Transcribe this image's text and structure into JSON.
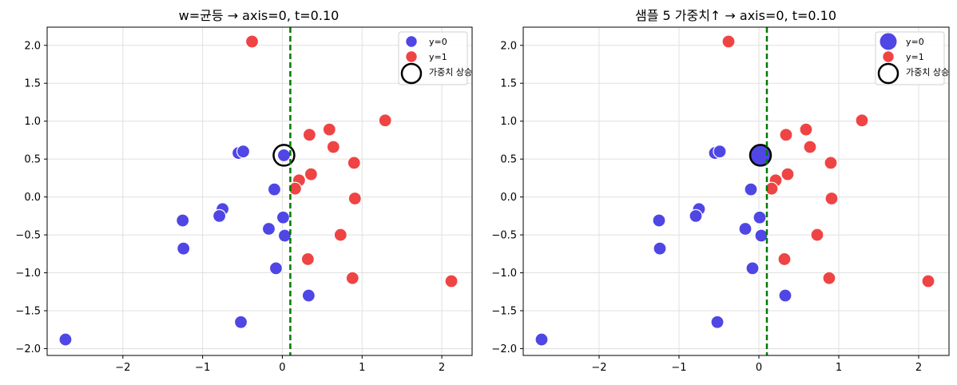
{
  "chart_data": [
    {
      "type": "scatter",
      "title": "w=균등  →  axis=0, t=0.10",
      "xlabel": "",
      "ylabel": "",
      "xlim": [
        -2.95,
        2.38
      ],
      "ylim": [
        -2.09,
        2.24
      ],
      "xticks": [
        -2,
        -1,
        0,
        1,
        2
      ],
      "yticks": [
        -2.0,
        -1.5,
        -1.0,
        -0.5,
        0.0,
        0.5,
        1.0,
        1.5,
        2.0
      ],
      "xtick_labels": [
        "−2",
        "−1",
        "0",
        "1",
        "2"
      ],
      "ytick_labels": [
        "−2.0",
        "−1.5",
        "−1.0",
        "−0.5",
        "0.0",
        "0.5",
        "1.0",
        "1.5",
        "2.0"
      ],
      "grid": true,
      "legend_position": "top-right",
      "threshold": {
        "axis": "x",
        "value": 0.1,
        "color": "#007a00",
        "style": "dashed"
      },
      "series": [
        {
          "name": "y=0",
          "color": "#4f46e5",
          "points": [
            [
              -2.72,
              -1.88
            ],
            [
              -1.25,
              -0.31
            ],
            [
              -1.24,
              -0.68
            ],
            [
              -0.75,
              -0.16
            ],
            [
              -0.79,
              -0.25
            ],
            [
              -0.55,
              0.58
            ],
            [
              -0.49,
              0.6
            ],
            [
              -0.52,
              -1.65
            ],
            [
              -0.17,
              -0.42
            ],
            [
              -0.1,
              0.1
            ],
            [
              -0.08,
              -0.94
            ],
            [
              0.01,
              -0.27
            ],
            [
              0.03,
              -0.51
            ],
            [
              0.02,
              0.55
            ],
            [
              0.33,
              -1.3
            ]
          ],
          "sizes": [
            1,
            1,
            1,
            1,
            1,
            1,
            1,
            1,
            1,
            1,
            1,
            1,
            1,
            1,
            1
          ]
        },
        {
          "name": "y=1",
          "color": "#ef4444",
          "points": [
            [
              -0.38,
              2.05
            ],
            [
              0.34,
              0.82
            ],
            [
              0.59,
              0.89
            ],
            [
              0.64,
              0.66
            ],
            [
              1.29,
              1.01
            ],
            [
              0.9,
              0.45
            ],
            [
              0.21,
              0.22
            ],
            [
              0.16,
              0.11
            ],
            [
              0.36,
              0.3
            ],
            [
              0.91,
              -0.02
            ],
            [
              0.73,
              -0.5
            ],
            [
              0.32,
              -0.82
            ],
            [
              0.88,
              -1.07
            ],
            [
              2.12,
              -1.11
            ]
          ],
          "sizes": [
            1,
            1,
            1,
            1,
            1,
            1,
            1,
            1,
            1,
            1,
            1,
            1,
            1,
            1
          ]
        }
      ],
      "highlight": {
        "name": "가중치 상승",
        "point": [
          0.02,
          0.55
        ]
      }
    },
    {
      "type": "scatter",
      "title": "샘플 5 가중치↑  →  axis=0, t=0.10",
      "xlabel": "",
      "ylabel": "",
      "xlim": [
        -2.95,
        2.38
      ],
      "ylim": [
        -2.09,
        2.24
      ],
      "xticks": [
        -2,
        -1,
        0,
        1,
        2
      ],
      "yticks": [
        -2.0,
        -1.5,
        -1.0,
        -0.5,
        0.0,
        0.5,
        1.0,
        1.5,
        2.0
      ],
      "xtick_labels": [
        "−2",
        "−1",
        "0",
        "1",
        "2"
      ],
      "ytick_labels": [
        "−2.0",
        "−1.5",
        "−1.0",
        "−0.5",
        "0.0",
        "0.5",
        "1.0",
        "1.5",
        "2.0"
      ],
      "grid": true,
      "legend_position": "top-right",
      "threshold": {
        "axis": "x",
        "value": 0.1,
        "color": "#007a00",
        "style": "dashed"
      },
      "series": [
        {
          "name": "y=0",
          "color": "#4f46e5",
          "points": [
            [
              -2.72,
              -1.88
            ],
            [
              -1.25,
              -0.31
            ],
            [
              -1.24,
              -0.68
            ],
            [
              -0.75,
              -0.16
            ],
            [
              -0.79,
              -0.25
            ],
            [
              -0.55,
              0.58
            ],
            [
              -0.49,
              0.6
            ],
            [
              -0.52,
              -1.65
            ],
            [
              -0.17,
              -0.42
            ],
            [
              -0.1,
              0.1
            ],
            [
              -0.08,
              -0.94
            ],
            [
              0.01,
              -0.27
            ],
            [
              0.03,
              -0.51
            ],
            [
              0.02,
              0.55
            ],
            [
              0.33,
              -1.3
            ]
          ],
          "sizes": [
            1,
            1,
            1,
            1,
            1,
            1,
            1,
            1,
            1,
            1,
            1,
            1,
            1,
            2.6,
            1
          ]
        },
        {
          "name": "y=1",
          "color": "#ef4444",
          "points": [
            [
              -0.38,
              2.05
            ],
            [
              0.34,
              0.82
            ],
            [
              0.59,
              0.89
            ],
            [
              0.64,
              0.66
            ],
            [
              1.29,
              1.01
            ],
            [
              0.9,
              0.45
            ],
            [
              0.21,
              0.22
            ],
            [
              0.16,
              0.11
            ],
            [
              0.36,
              0.3
            ],
            [
              0.91,
              -0.02
            ],
            [
              0.73,
              -0.5
            ],
            [
              0.32,
              -0.82
            ],
            [
              0.88,
              -1.07
            ],
            [
              2.12,
              -1.11
            ]
          ],
          "sizes": [
            1,
            1,
            1,
            1,
            1,
            1,
            1,
            1,
            1,
            1,
            1,
            1,
            1,
            1
          ]
        }
      ],
      "highlight": {
        "name": "가중치 상승",
        "point": [
          0.02,
          0.55
        ]
      }
    }
  ]
}
